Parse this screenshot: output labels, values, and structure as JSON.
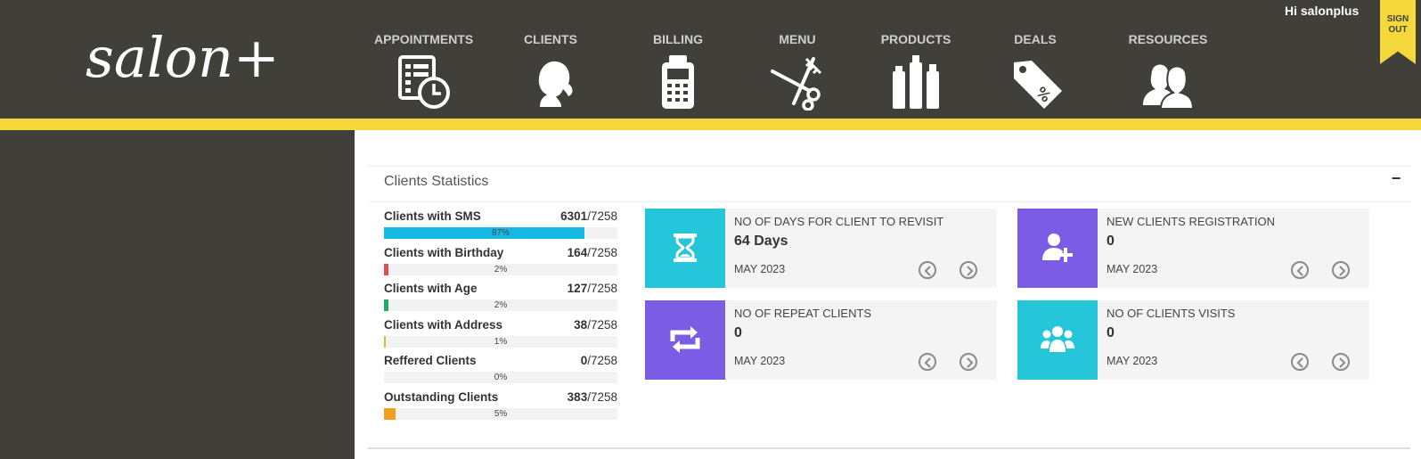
{
  "brand": {
    "logo_text": "salon+"
  },
  "header": {
    "greeting": "Hi salonplus",
    "signout_label": "SIGN OUT",
    "nav": [
      {
        "label": "APPOINTMENTS",
        "icon": "appointments-icon"
      },
      {
        "label": "CLIENTS",
        "icon": "client-silhouette-icon"
      },
      {
        "label": "BILLING",
        "icon": "calculator-icon"
      },
      {
        "label": "MENU",
        "icon": "scissors-comb-icon"
      },
      {
        "label": "PRODUCTS",
        "icon": "bottles-icon"
      },
      {
        "label": "DEALS",
        "icon": "price-tag-icon"
      },
      {
        "label": "RESOURCES",
        "icon": "staff-icon"
      }
    ]
  },
  "colors": {
    "header_bg": "#403f3a",
    "accent_yellow": "#f5d83c",
    "cyan": "#26c6da",
    "purple": "#7b5ce5",
    "sms_bar": "#16b9e3",
    "birthday_bar": "#d9534f",
    "age_bar": "#1aaa6b",
    "address_bar": "#f0ad4e",
    "outstanding_bar": "#f0a020"
  },
  "panel": {
    "title": "Clients Statistics",
    "collapse_label": "−"
  },
  "stats": [
    {
      "name": "Clients with SMS",
      "count": "6301",
      "total": "/7258",
      "percent": 87,
      "percent_label": "87%",
      "color": "#16b9e3"
    },
    {
      "name": "Clients with Birthday",
      "count": "164",
      "total": "/7258",
      "percent": 2,
      "percent_label": "2%",
      "color": "#d9534f"
    },
    {
      "name": "Clients with Age",
      "count": "127",
      "total": "/7258",
      "percent": 2,
      "percent_label": "2%",
      "color": "#1aaa6b"
    },
    {
      "name": "Clients with Address",
      "count": "38",
      "total": "/7258",
      "percent": 1,
      "percent_label": "1%",
      "color": "#f0ad4e"
    },
    {
      "name": "Reffered Clients",
      "count": "0",
      "total": "/7258",
      "percent": 0,
      "percent_label": "0%",
      "color": "#cccccc"
    },
    {
      "name": "Outstanding Clients",
      "count": "383",
      "total": "/7258",
      "percent": 5,
      "percent_label": "5%",
      "color": "#f0a020"
    }
  ],
  "cards": [
    {
      "title": "NO OF DAYS FOR CLIENT TO REVISIT",
      "value": "64 Days",
      "month": "MAY 2023",
      "icon": "hourglass-icon",
      "color": "#26c6da"
    },
    {
      "title": "NEW CLIENTS REGISTRATION",
      "value": "0",
      "month": "MAY 2023",
      "icon": "add-user-icon",
      "color": "#7b5ce5"
    },
    {
      "title": "NO OF REPEAT CLIENTS",
      "value": "0",
      "month": "MAY 2023",
      "icon": "repeat-icon",
      "color": "#7b5ce5"
    },
    {
      "title": "NO OF CLIENTS VISITS",
      "value": "0",
      "month": "MAY 2023",
      "icon": "group-icon",
      "color": "#26c6da"
    }
  ]
}
